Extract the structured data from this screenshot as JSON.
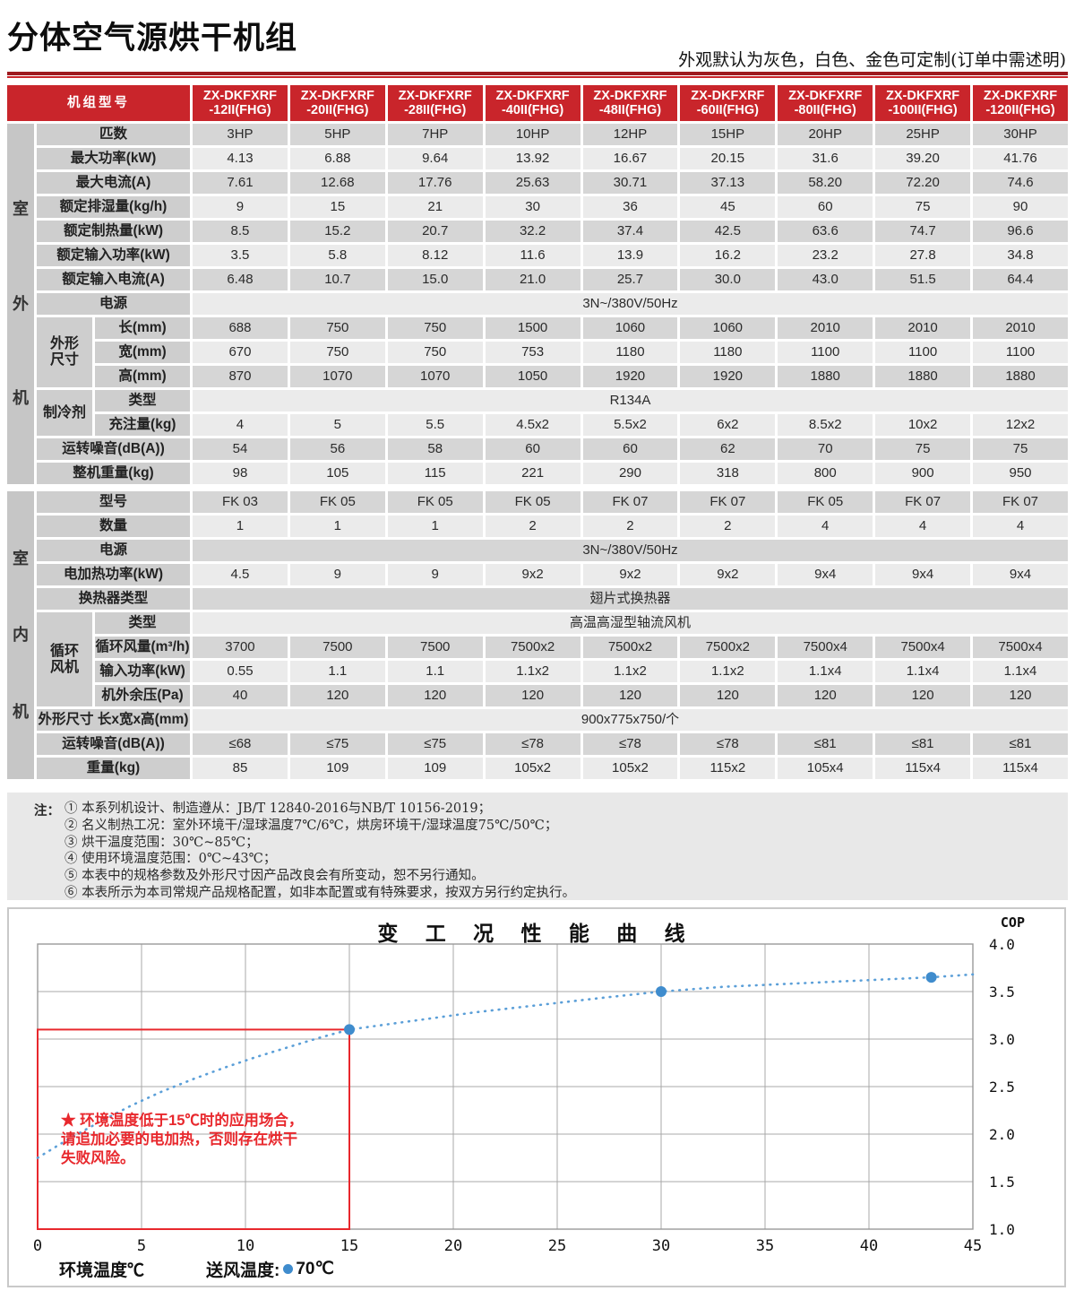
{
  "header": {
    "title": "分体空气源烘干机组",
    "subtitle": "外观默认为灰色，白色、金色可定制(订单中需述明)"
  },
  "table": {
    "corner_label": "机组型号",
    "models": [
      "ZX-DKFXRF\n-12II(FHG)",
      "ZX-DKFXRF\n-20II(FHG)",
      "ZX-DKFXRF\n-28II(FHG)",
      "ZX-DKFXRF\n-40II(FHG)",
      "ZX-DKFXRF\n-48II(FHG)",
      "ZX-DKFXRF\n-60II(FHG)",
      "ZX-DKFXRF\n-80II(FHG)",
      "ZX-DKFXRF\n-100II(FHG)",
      "ZX-DKFXRF\n-120II(FHG)"
    ],
    "sections": [
      {
        "band": "室外机",
        "rows": [
          {
            "label": "匹数",
            "shade": "d",
            "values": [
              "3HP",
              "5HP",
              "7HP",
              "10HP",
              "12HP",
              "15HP",
              "20HP",
              "25HP",
              "30HP"
            ]
          },
          {
            "label": "最大功率(kW)",
            "shade": "l",
            "values": [
              "4.13",
              "6.88",
              "9.64",
              "13.92",
              "16.67",
              "20.15",
              "31.6",
              "39.20",
              "41.76"
            ]
          },
          {
            "label": "最大电流(A)",
            "shade": "d",
            "values": [
              "7.61",
              "12.68",
              "17.76",
              "25.63",
              "30.71",
              "37.13",
              "58.20",
              "72.20",
              "74.6"
            ]
          },
          {
            "label": "额定排湿量(kg/h)",
            "shade": "l",
            "values": [
              "9",
              "15",
              "21",
              "30",
              "36",
              "45",
              "60",
              "75",
              "90"
            ]
          },
          {
            "label": "额定制热量(kW)",
            "shade": "d",
            "values": [
              "8.5",
              "15.2",
              "20.7",
              "32.2",
              "37.4",
              "42.5",
              "63.6",
              "74.7",
              "96.6"
            ]
          },
          {
            "label": "额定输入功率(kW)",
            "shade": "l",
            "values": [
              "3.5",
              "5.8",
              "8.12",
              "11.6",
              "13.9",
              "16.2",
              "23.2",
              "27.8",
              "34.8"
            ]
          },
          {
            "label": "额定输入电流(A)",
            "shade": "d",
            "values": [
              "6.48",
              "10.7",
              "15.0",
              "21.0",
              "25.7",
              "30.0",
              "43.0",
              "51.5",
              "64.4"
            ]
          },
          {
            "label": "电源",
            "shade": "l",
            "span": "3N~/380V/50Hz"
          },
          {
            "group": "外形\n尺寸",
            "group_rows": 3,
            "label": "长(mm)",
            "shade": "d",
            "values": [
              "688",
              "750",
              "750",
              "1500",
              "1060",
              "1060",
              "2010",
              "2010",
              "2010"
            ]
          },
          {
            "label": "宽(mm)",
            "shade": "l",
            "values": [
              "670",
              "750",
              "750",
              "753",
              "1180",
              "1180",
              "1100",
              "1100",
              "1100"
            ]
          },
          {
            "label": "高(mm)",
            "shade": "d",
            "values": [
              "870",
              "1070",
              "1070",
              "1050",
              "1920",
              "1920",
              "1880",
              "1880",
              "1880"
            ]
          },
          {
            "group": "制冷剂",
            "group_rows": 2,
            "label": "类型",
            "shade": "l",
            "span": "R134A"
          },
          {
            "label": "充注量(kg)",
            "shade": "l",
            "values": [
              "4",
              "5",
              "5.5",
              "4.5x2",
              "5.5x2",
              "6x2",
              "8.5x2",
              "10x2",
              "12x2"
            ]
          },
          {
            "label": "运转噪音(dB(A))",
            "shade": "d",
            "values": [
              "54",
              "56",
              "58",
              "60",
              "60",
              "62",
              "70",
              "75",
              "75"
            ]
          },
          {
            "label": "整机重量(kg)",
            "shade": "l",
            "values": [
              "98",
              "105",
              "115",
              "221",
              "290",
              "318",
              "800",
              "900",
              "950"
            ]
          }
        ]
      },
      {
        "band": "室内机",
        "rows": [
          {
            "label": "型号",
            "shade": "d",
            "values": [
              "FK 03",
              "FK 05",
              "FK 05",
              "FK 05",
              "FK 07",
              "FK 07",
              "FK 05",
              "FK 07",
              "FK 07"
            ]
          },
          {
            "label": "数量",
            "shade": "l",
            "values": [
              "1",
              "1",
              "1",
              "2",
              "2",
              "2",
              "4",
              "4",
              "4"
            ]
          },
          {
            "label": "电源",
            "shade": "d",
            "span": "3N~/380V/50Hz"
          },
          {
            "label": "电加热功率(kW)",
            "shade": "l",
            "values": [
              "4.5",
              "9",
              "9",
              "9x2",
              "9x2",
              "9x2",
              "9x4",
              "9x4",
              "9x4"
            ]
          },
          {
            "label": "换热器类型",
            "shade": "d",
            "span": "翅片式换热器"
          },
          {
            "group": "循环\n风机",
            "group_rows": 4,
            "label": "类型",
            "shade": "l",
            "span": "高温高湿型轴流风机"
          },
          {
            "label": "循环风量(m³/h)",
            "shade": "d",
            "values": [
              "3700",
              "7500",
              "7500",
              "7500x2",
              "7500x2",
              "7500x2",
              "7500x4",
              "7500x4",
              "7500x4"
            ]
          },
          {
            "label": "输入功率(kW)",
            "shade": "l",
            "values": [
              "0.55",
              "1.1",
              "1.1",
              "1.1x2",
              "1.1x2",
              "1.1x2",
              "1.1x4",
              "1.1x4",
              "1.1x4"
            ]
          },
          {
            "label": "机外余压(Pa)",
            "shade": "d",
            "values": [
              "40",
              "120",
              "120",
              "120",
              "120",
              "120",
              "120",
              "120",
              "120"
            ]
          },
          {
            "label": "外形尺寸 长x宽x高(mm)",
            "shade": "l",
            "span": "900x775x750/个"
          },
          {
            "label": "运转噪音(dB(A))",
            "shade": "d",
            "values": [
              "≤68",
              "≤75",
              "≤75",
              "≤78",
              "≤78",
              "≤78",
              "≤81",
              "≤81",
              "≤81"
            ]
          },
          {
            "label": "重量(kg)",
            "shade": "l",
            "values": [
              "85",
              "109",
              "109",
              "105x2",
              "105x2",
              "115x2",
              "105x4",
              "115x4",
              "115x4"
            ]
          }
        ]
      }
    ]
  },
  "notes": {
    "prefix": "注：",
    "items": [
      "① 本系列机设计、制造遵从：JB/T 12840-2016与NB/T 10156-2019；",
      "② 名义制热工况：室外环境干/湿球温度7℃/6℃，烘房环境干/湿球温度75℃/50℃；",
      "③ 烘干温度范围：30℃~85℃；",
      "④ 使用环境温度范围：0℃~43℃；",
      "⑤ 本表中的规格参数及外形尺寸因产品改良会有所变动，恕不另行通知。",
      "⑥ 本表所示为本司常规产品规格配置，如非本配置或有特殊要求，按双方另行约定执行。"
    ]
  },
  "chart_data": {
    "type": "line",
    "title": "变 工 况 性 能 曲 线",
    "ylabel": "COP",
    "xlabel": "环境温度℃",
    "legend": {
      "label": "送风温度:",
      "value": "70℃",
      "marker": "dot",
      "color": "#3f8ccd"
    },
    "xlim": [
      0,
      45
    ],
    "ylim": [
      1.0,
      4.0
    ],
    "xticks": [
      "0",
      "5",
      "10",
      "15",
      "20",
      "25",
      "30",
      "35",
      "40",
      "45"
    ],
    "yticks": [
      "4.0",
      "3.5",
      "3.0",
      "2.5",
      "2.0",
      "1.5",
      "1.0"
    ],
    "grid": true,
    "series": [
      {
        "name": "送风温度70℃",
        "style": "dotted",
        "color": "#5b9fd8",
        "curve": {
          "x": [
            0,
            1.5,
            3,
            4.5,
            6,
            7.5,
            9,
            10.5,
            12,
            13.5,
            15,
            17,
            19,
            21,
            23,
            25,
            27,
            30,
            33,
            36,
            39,
            41,
            43,
            45
          ],
          "y": [
            1.75,
            1.95,
            2.13,
            2.3,
            2.45,
            2.58,
            2.7,
            2.81,
            2.91,
            3.01,
            3.1,
            3.16,
            3.22,
            3.28,
            3.33,
            3.38,
            3.43,
            3.5,
            3.55,
            3.58,
            3.61,
            3.63,
            3.65,
            3.68
          ]
        },
        "highlight_points": [
          {
            "x": 15,
            "y": 3.1
          },
          {
            "x": 30,
            "y": 3.5
          },
          {
            "x": 43,
            "y": 3.65
          }
        ]
      }
    ],
    "annotation": {
      "color": "#e8282d",
      "lines": [
        "★ 环境温度低于15℃时的应用场合，",
        "请追加必要的电加热，否则存在烘干",
        "失败风险。"
      ],
      "box": {
        "x0": 0,
        "y0": 1.0,
        "x1": 15,
        "y1": 3.1
      }
    }
  }
}
